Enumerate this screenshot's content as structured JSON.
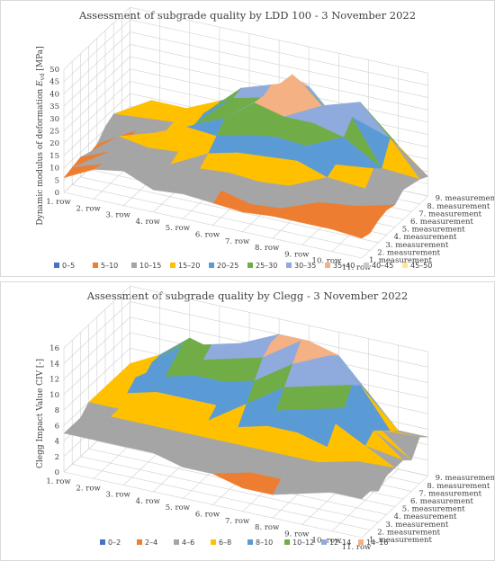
{
  "chart_data": [
    {
      "type": "surface",
      "title": "Assessment of subgrade quality by LDD 100 - 3 November 2022",
      "zlabel_main": "Dynamic modulus of deformation ",
      "zlabel_sym": "E",
      "zlabel_sub": "vd",
      "zlabel_unit": " [MPa]",
      "zlim": [
        0,
        50
      ],
      "z_ticks": [
        "0",
        "5",
        "10",
        "15",
        "20",
        "25",
        "30",
        "35",
        "40",
        "45",
        "50"
      ],
      "rows": [
        "1. row",
        "2. row",
        "3. row",
        "4. row",
        "5. row",
        "6. row",
        "7. row",
        "8. row",
        "9. row",
        "10. row",
        "11. row"
      ],
      "measurements": [
        "1. measurement",
        "2. measurement",
        "3. measurement",
        "4. measurement",
        "5. measurement",
        "6. measurement",
        "7. measurement",
        "8. measurement",
        "9. measurement"
      ],
      "bands": [
        "0–5",
        "5–10",
        "10–15",
        "15–20",
        "20–25",
        "25–30",
        "30–35",
        "35–40",
        "40–45",
        "45–50"
      ],
      "band_colors": [
        "#4472c4",
        "#ed7d31",
        "#a5a5a5",
        "#ffc000",
        "#5b9bd5",
        "#70ad47",
        "#8faadc",
        "#f4b183",
        "#c9c9c9",
        "#ffe699"
      ],
      "grid": true,
      "legend_position": "bottom",
      "values": [
        [
          6,
          7,
          8,
          6,
          7,
          11,
          13,
          11,
          4
        ],
        [
          12,
          11,
          13,
          16,
          10,
          12,
          14,
          18,
          14
        ],
        [
          14,
          13,
          14,
          14,
          17,
          14,
          15,
          17,
          14
        ],
        [
          9,
          11,
          13,
          15,
          22,
          20,
          21,
          17,
          20
        ],
        [
          10,
          12,
          14,
          17,
          21,
          25,
          30,
          31,
          26
        ],
        [
          9,
          11,
          15,
          20,
          24,
          34,
          33,
          35,
          28
        ],
        [
          8,
          8,
          14,
          21,
          26,
          31,
          45,
          39,
          34
        ],
        [
          9,
          9,
          15,
          22,
          25,
          31,
          35,
          28,
          22
        ],
        [
          9,
          9,
          11,
          18,
          20,
          28,
          33,
          36,
          21
        ],
        [
          9,
          9,
          8,
          9,
          13,
          18,
          15,
          24,
          18
        ],
        [
          8,
          7,
          9,
          10,
          9,
          12,
          11,
          10,
          8
        ]
      ]
    },
    {
      "type": "surface",
      "title": "Assessment of subgrade quality by Clegg - 3 November 2022",
      "zlabel_main": "Clegg Impact Value CIV [-]",
      "zlim": [
        0,
        16
      ],
      "z_ticks": [
        "0",
        "2",
        "4",
        "6",
        "8",
        "10",
        "12",
        "14",
        "16"
      ],
      "rows": [
        "1. row",
        "2. row",
        "3. row",
        "4. row",
        "5. row",
        "6. row",
        "7. row",
        "8. row",
        "9. row",
        "10. row",
        "11. row"
      ],
      "measurements": [
        "1. measurement",
        "2. measurement",
        "3. measurement",
        "4. measurement",
        "5. measurement",
        "6. measurement",
        "7. measurement",
        "8. measurement",
        "9. measurement"
      ],
      "bands": [
        "0–2",
        "2–4",
        "4–6",
        "6–8",
        "8–10",
        "10–12",
        "12–14",
        "14–16"
      ],
      "band_colors": [
        "#4472c4",
        "#ed7d31",
        "#a5a5a5",
        "#ffc000",
        "#5b9bd5",
        "#70ad47",
        "#8faadc",
        "#f4b183"
      ],
      "grid": true,
      "legend_position": "bottom",
      "values": [
        [
          5,
          5,
          5,
          6,
          6,
          6,
          6,
          6,
          6
        ],
        [
          5,
          5,
          6,
          6,
          7,
          8,
          7,
          8,
          8
        ],
        [
          5,
          5,
          6,
          7,
          8,
          9,
          10,
          11,
          11
        ],
        [
          5,
          5,
          6,
          7,
          8,
          10,
          11,
          12,
          10
        ],
        [
          4,
          5,
          6,
          7,
          8,
          10,
          12,
          13,
          11
        ],
        [
          4,
          4,
          6,
          7,
          9,
          11,
          13,
          14,
          14
        ],
        [
          3,
          4,
          6,
          8,
          9,
          11,
          13,
          15,
          14
        ],
        [
          3,
          4,
          6,
          8,
          10,
          12,
          14,
          14,
          13
        ],
        [
          4,
          5,
          6,
          7,
          9,
          10,
          12,
          11,
          9
        ],
        [
          5,
          5,
          5,
          6,
          7,
          8,
          7,
          6,
          5
        ],
        [
          5,
          5,
          4,
          5,
          5,
          5,
          4,
          6,
          5
        ]
      ]
    }
  ]
}
